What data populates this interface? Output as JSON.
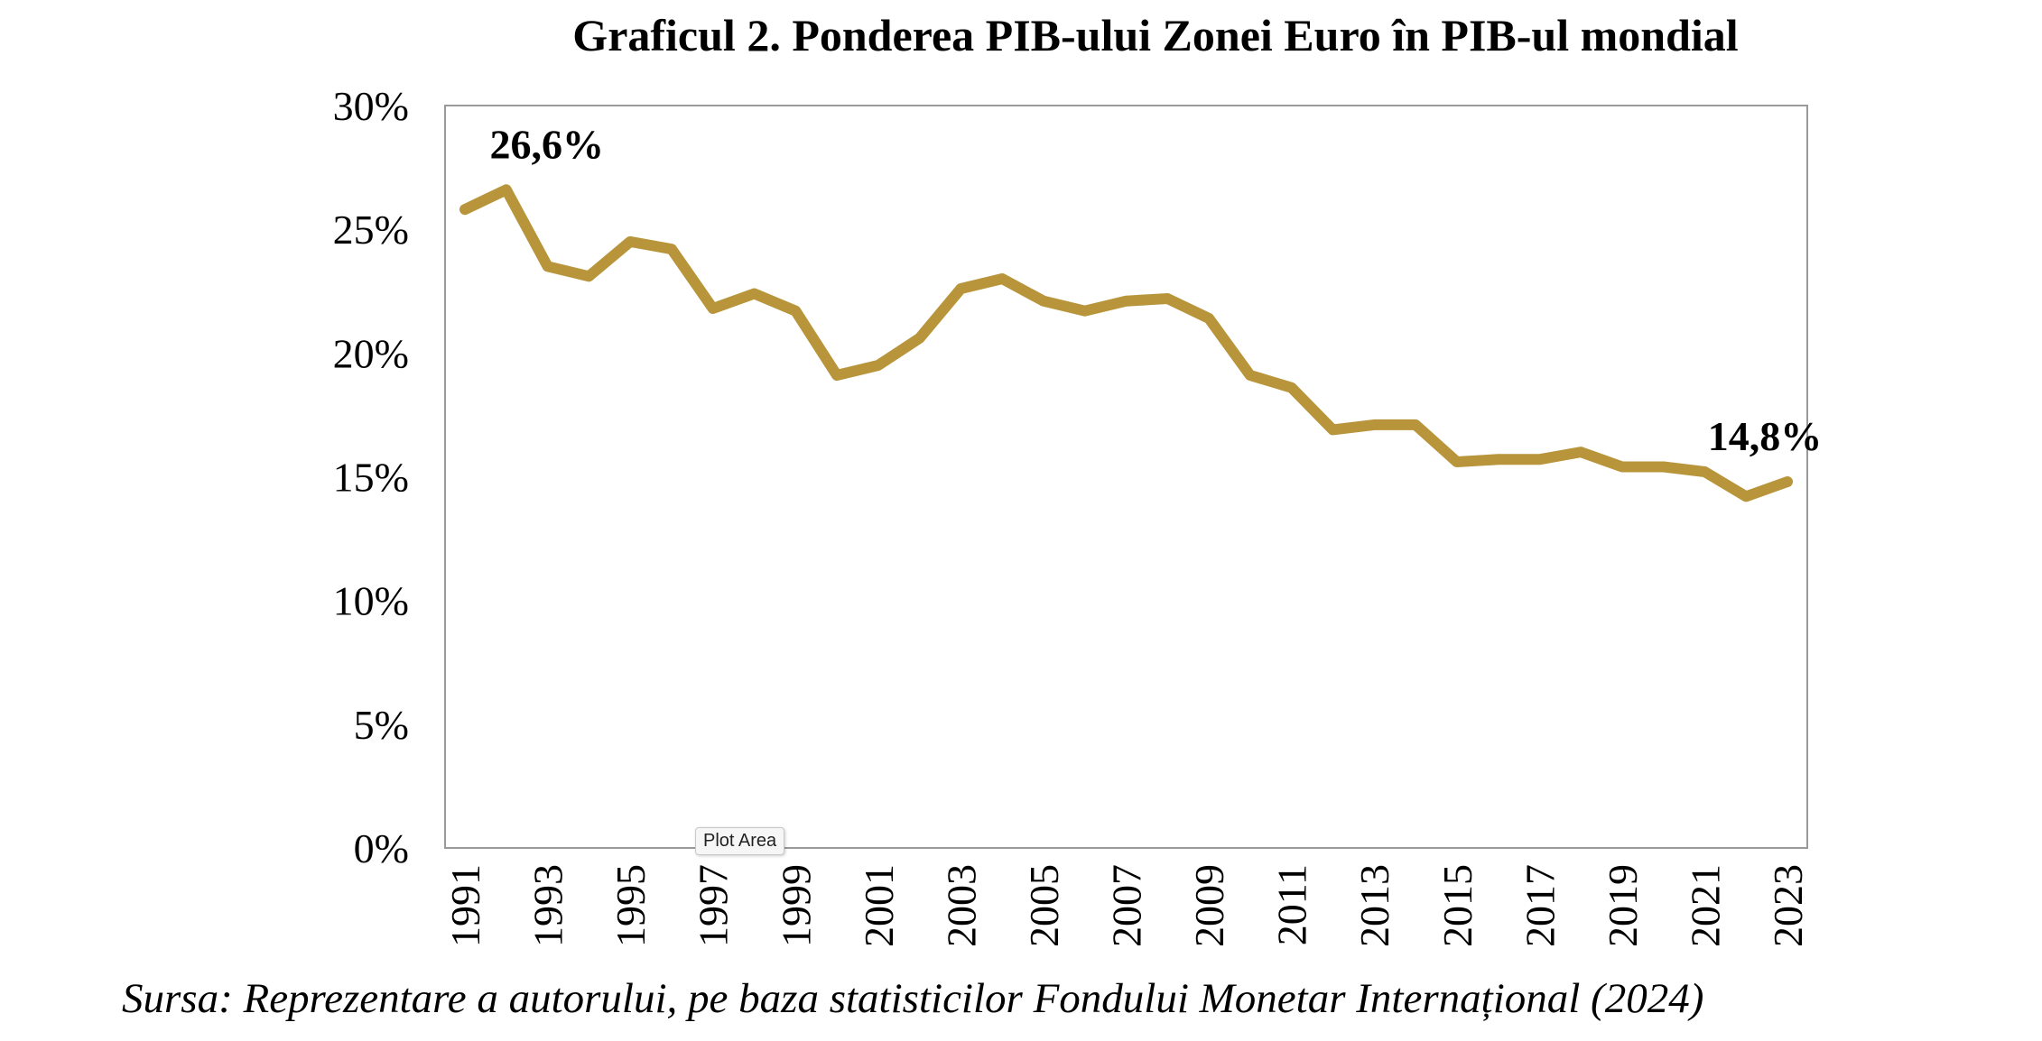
{
  "title": "Graficul 2. Ponderea PIB-ului Zonei Euro în PIB-ul mondial",
  "source": "Sursa: Reprezentare a autorului, pe baza statisticilor Fondului Monetar Internațional (2024)",
  "tooltip": "Plot Area",
  "colors": {
    "line": "#B8953A",
    "axis": "#9a9a9a"
  },
  "chart_data": {
    "type": "line",
    "title": "Graficul 2. Ponderea PIB-ului Zonei Euro în PIB-ul mondial",
    "xlabel": "",
    "ylabel": "",
    "x": [
      1991,
      1992,
      1993,
      1994,
      1995,
      1996,
      1997,
      1998,
      1999,
      2000,
      2001,
      2002,
      2003,
      2004,
      2005,
      2006,
      2007,
      2008,
      2009,
      2010,
      2011,
      2012,
      2013,
      2014,
      2015,
      2016,
      2017,
      2018,
      2019,
      2020,
      2021,
      2022,
      2023
    ],
    "x_tick_labels": [
      "1991",
      "1993",
      "1995",
      "1997",
      "1999",
      "2001",
      "2003",
      "2005",
      "2007",
      "2009",
      "2011",
      "2013",
      "2015",
      "2017",
      "2019",
      "2021",
      "2023"
    ],
    "series": [
      {
        "values": [
          25.8,
          26.6,
          23.5,
          23.1,
          24.5,
          24.2,
          21.8,
          22.4,
          21.7,
          19.1,
          19.5,
          20.6,
          22.6,
          23.0,
          22.1,
          21.7,
          22.1,
          22.2,
          21.4,
          19.1,
          18.6,
          16.9,
          17.1,
          17.1,
          15.6,
          15.7,
          15.7,
          16.0,
          15.4,
          15.4,
          15.2,
          14.2,
          14.8
        ]
      }
    ],
    "data_labels": [
      {
        "x": 1992,
        "text": "26,6%"
      },
      {
        "x": 2023,
        "text": "14,8%"
      }
    ],
    "ylim": [
      0,
      30
    ],
    "y_ticks": [
      0,
      5,
      10,
      15,
      20,
      25,
      30
    ],
    "y_tick_labels": [
      "0%",
      "5%",
      "10%",
      "15%",
      "20%",
      "25%",
      "30%"
    ],
    "grid": false,
    "legend": "none"
  }
}
